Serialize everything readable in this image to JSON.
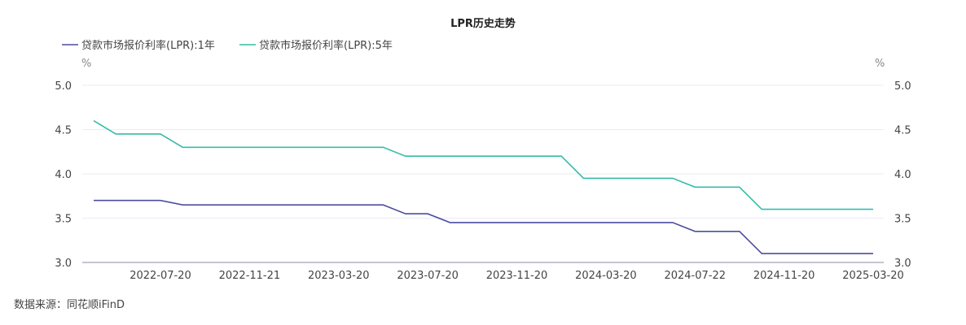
{
  "chart_data": {
    "type": "line",
    "title": "LPR历史走势",
    "ylabel_left": "%",
    "ylabel_right": "%",
    "ylim": [
      3.0,
      5.0
    ],
    "yticks": [
      "3.0",
      "3.5",
      "4.0",
      "4.5",
      "5.0"
    ],
    "xtick_labels": [
      "2022-07-20",
      "2022-11-21",
      "2023-03-20",
      "2023-07-20",
      "2023-11-20",
      "2024-03-20",
      "2024-07-22",
      "2024-11-20",
      "2025-03-20"
    ],
    "xtick_indices": [
      3,
      7,
      11,
      15,
      19,
      23,
      27,
      31,
      35
    ],
    "x": [
      "2022-04",
      "2022-05",
      "2022-06",
      "2022-07",
      "2022-08",
      "2022-09",
      "2022-10",
      "2022-11",
      "2022-12",
      "2023-01",
      "2023-02",
      "2023-03",
      "2023-04",
      "2023-05",
      "2023-06",
      "2023-07",
      "2023-08",
      "2023-09",
      "2023-10",
      "2023-11",
      "2023-12",
      "2024-01",
      "2024-02",
      "2024-03",
      "2024-04",
      "2024-05",
      "2024-06",
      "2024-07",
      "2024-08",
      "2024-09",
      "2024-10",
      "2024-11",
      "2024-12",
      "2025-01",
      "2025-02",
      "2025-03"
    ],
    "series": [
      {
        "name": "贷款市场报价利率(LPR):1年",
        "color": "#4b4f9e",
        "values": [
          3.7,
          3.7,
          3.7,
          3.7,
          3.65,
          3.65,
          3.65,
          3.65,
          3.65,
          3.65,
          3.65,
          3.65,
          3.65,
          3.65,
          3.55,
          3.55,
          3.45,
          3.45,
          3.45,
          3.45,
          3.45,
          3.45,
          3.45,
          3.45,
          3.45,
          3.45,
          3.45,
          3.35,
          3.35,
          3.35,
          3.1,
          3.1,
          3.1,
          3.1,
          3.1,
          3.1
        ]
      },
      {
        "name": "贷款市场报价利率(LPR):5年",
        "color": "#35bca9",
        "values": [
          4.6,
          4.45,
          4.45,
          4.45,
          4.3,
          4.3,
          4.3,
          4.3,
          4.3,
          4.3,
          4.3,
          4.3,
          4.3,
          4.3,
          4.2,
          4.2,
          4.2,
          4.2,
          4.2,
          4.2,
          4.2,
          4.2,
          3.95,
          3.95,
          3.95,
          3.95,
          3.95,
          3.85,
          3.85,
          3.85,
          3.6,
          3.6,
          3.6,
          3.6,
          3.6,
          3.6
        ]
      }
    ],
    "legend": "top-left",
    "grid": true
  },
  "source": "数据来源：同花顺iFinD"
}
